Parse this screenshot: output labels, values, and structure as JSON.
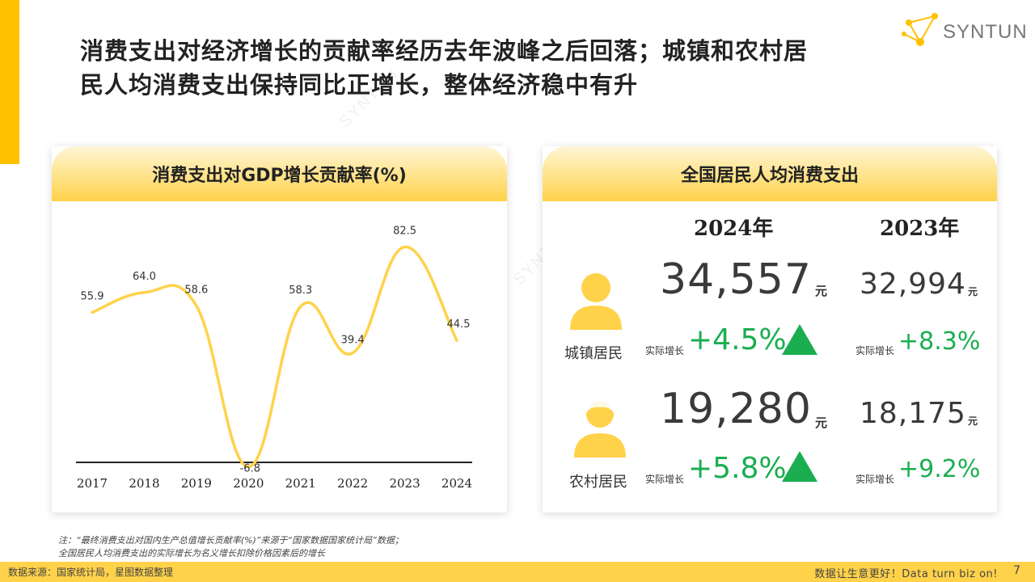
{
  "title": {
    "line1": "消费支出对经济增长的贡献率经历去年波峰之后回落；城镇和农村居",
    "line2": "民人均消费支出保持同比正增长，整体经济稳中有升"
  },
  "logo": {
    "text": "SYNTUN",
    "watermark": "SYNTUN"
  },
  "left_card": {
    "title": "消费支出对GDP增长贡献率(%)"
  },
  "chart_data": {
    "type": "line",
    "title": "消费支出对GDP增长贡献率(%)",
    "categories": [
      "2017",
      "2018",
      "2019",
      "2020",
      "2021",
      "2022",
      "2023",
      "2024"
    ],
    "series": [
      {
        "values": [
          55.9,
          64.0,
          58.6,
          -6.8,
          58.3,
          39.4,
          82.5,
          44.5
        ]
      }
    ],
    "labels": [
      "55.9",
      "64.0",
      "58.6",
      "-6.8",
      "58.3",
      "39.4",
      "82.5",
      "44.5"
    ],
    "ylim": [
      -7,
      83
    ],
    "grid": false,
    "line_color": "#FFD24A"
  },
  "right_card": {
    "title": "全国居民人均消费支出",
    "col_2024": "2024年",
    "col_2023": "2023年",
    "urban": {
      "label": "城镇居民",
      "val_2024": "34,557",
      "val_2023": "32,994",
      "unit": "元",
      "growth_label": "实际增长",
      "growth_2024": "+4.5%",
      "growth_2023": "+8.3%"
    },
    "rural": {
      "label": "农村居民",
      "val_2024": "19,280",
      "val_2023": "18,175",
      "unit": "元",
      "growth_label": "实际增长",
      "growth_2024": "+5.8%",
      "growth_2023": "+9.2%"
    },
    "growth_color": "#1AAE50",
    "icon_color": "#FFD24A"
  },
  "note": {
    "line1": "注：“最终消费支出对国内生产总值增长贡献率(%)”来源于“国家数据国家统计局”数据；",
    "line2": "全国居民人均消费支出的实际增长为名义增长扣除价格因素后的增长"
  },
  "footer": {
    "source": "数据来源：国家统计局，星图数据整理",
    "slogan": "数据让生意更好！Data turn biz on!",
    "page": "7"
  },
  "colors": {
    "accent": "#FFC000",
    "header_gradient_end": "#FFD24A"
  }
}
